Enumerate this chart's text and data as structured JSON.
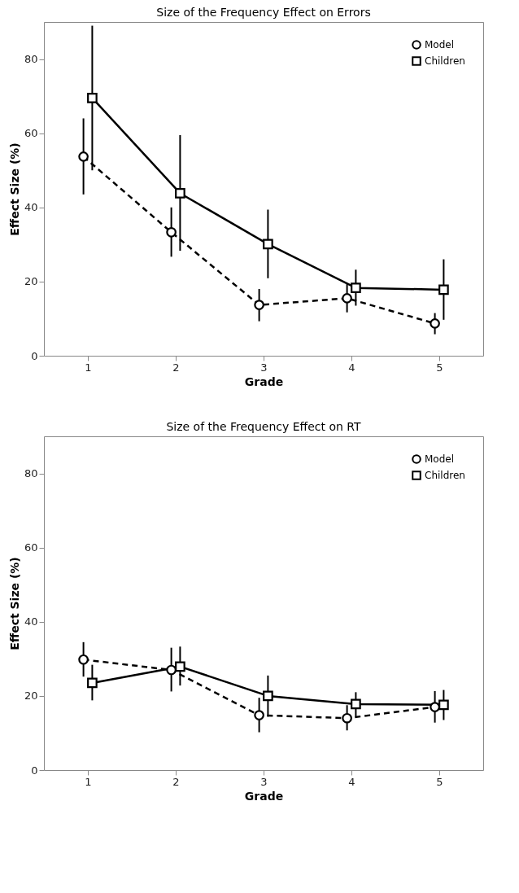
{
  "chart_data": [
    {
      "type": "line",
      "title": "Size of the Frequency Effect on Errors",
      "xlabel": "Grade",
      "ylabel": "Effect Size (%)",
      "xlim": [
        0.5,
        5.5
      ],
      "xticks": [
        1,
        2,
        3,
        4,
        5
      ],
      "ylim": [
        0,
        90
      ],
      "yticks": [
        0,
        20,
        40,
        60,
        80
      ],
      "grid": false,
      "legend": "top right",
      "series": [
        {
          "name": "Model",
          "color": "#000000",
          "line_style": "dashed",
          "marker": "circle",
          "x": [
            0.95,
            1.95,
            2.95,
            3.95,
            4.95
          ],
          "values": [
            53.7,
            33.3,
            13.7,
            15.5,
            8.7
          ],
          "errors": [
            [
              43.5,
              64
            ],
            [
              26.7,
              40
            ],
            [
              9.3,
              18
            ],
            [
              11.7,
              19.3
            ],
            [
              5.8,
              11.5
            ]
          ]
        },
        {
          "name": "Children",
          "color": "#000000",
          "line_style": "solid",
          "marker": "square",
          "x": [
            1.05,
            2.05,
            3.05,
            4.05,
            5.05
          ],
          "values": [
            69.5,
            43.8,
            30.1,
            18.3,
            17.8
          ],
          "errors": [
            [
              50,
              89
            ],
            [
              28.3,
              59.5
            ],
            [
              20.9,
              39.4
            ],
            [
              13.5,
              23.2
            ],
            [
              9.7,
              26
            ]
          ]
        }
      ]
    },
    {
      "type": "line",
      "title": "Size of the Frequency Effect on RT",
      "xlabel": "Grade",
      "ylabel": "Effect Size (%)",
      "xlim": [
        0.5,
        5.5
      ],
      "xticks": [
        1,
        2,
        3,
        4,
        5
      ],
      "ylim": [
        0,
        90
      ],
      "yticks": [
        0,
        20,
        40,
        60,
        80
      ],
      "grid": false,
      "legend": "top right",
      "series": [
        {
          "name": "Model",
          "color": "#000000",
          "line_style": "dashed",
          "marker": "circle",
          "x": [
            0.95,
            1.95,
            2.95,
            3.95,
            4.95
          ],
          "values": [
            29.8,
            27.0,
            14.8,
            14.0,
            17.0
          ],
          "errors": [
            [
              25.2,
              34.5
            ],
            [
              21.2,
              33.0
            ],
            [
              10.2,
              19.5
            ],
            [
              10.7,
              17.5
            ],
            [
              12.8,
              21.3
            ]
          ]
        },
        {
          "name": "Children",
          "color": "#000000",
          "line_style": "solid",
          "marker": "square",
          "x": [
            1.05,
            2.05,
            3.05,
            4.05,
            5.05
          ],
          "values": [
            23.5,
            27.9,
            20.0,
            17.8,
            17.6
          ],
          "errors": [
            [
              18.8,
              28.4
            ],
            [
              22.8,
              33.3
            ],
            [
              14.4,
              25.5
            ],
            [
              14.5,
              21.0
            ],
            [
              13.5,
              21.6
            ]
          ]
        }
      ]
    }
  ]
}
